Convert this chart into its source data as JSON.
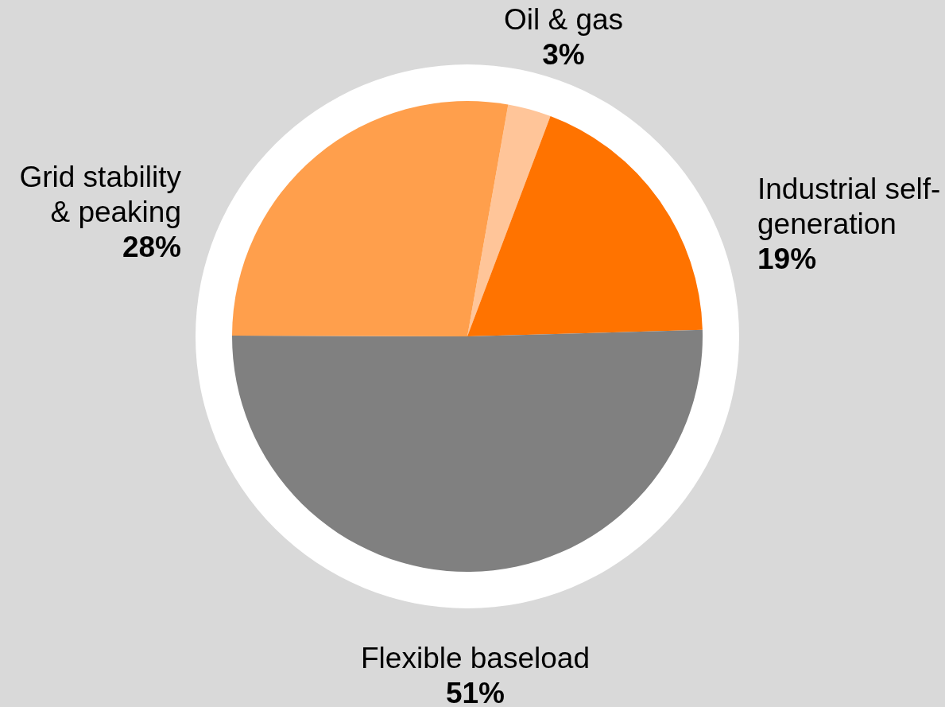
{
  "chart_data": {
    "type": "pie",
    "categories": [
      "Oil & gas",
      "Industrial self-generation",
      "Flexible baseload",
      "Grid stability & peaking"
    ],
    "values": [
      3,
      19,
      51,
      28
    ],
    "value_labels": [
      "3%",
      "19%",
      "51%",
      "28%"
    ],
    "colors": [
      "#ffc599",
      "#ff7300",
      "#808080",
      "#ff9f4c"
    ]
  }
}
